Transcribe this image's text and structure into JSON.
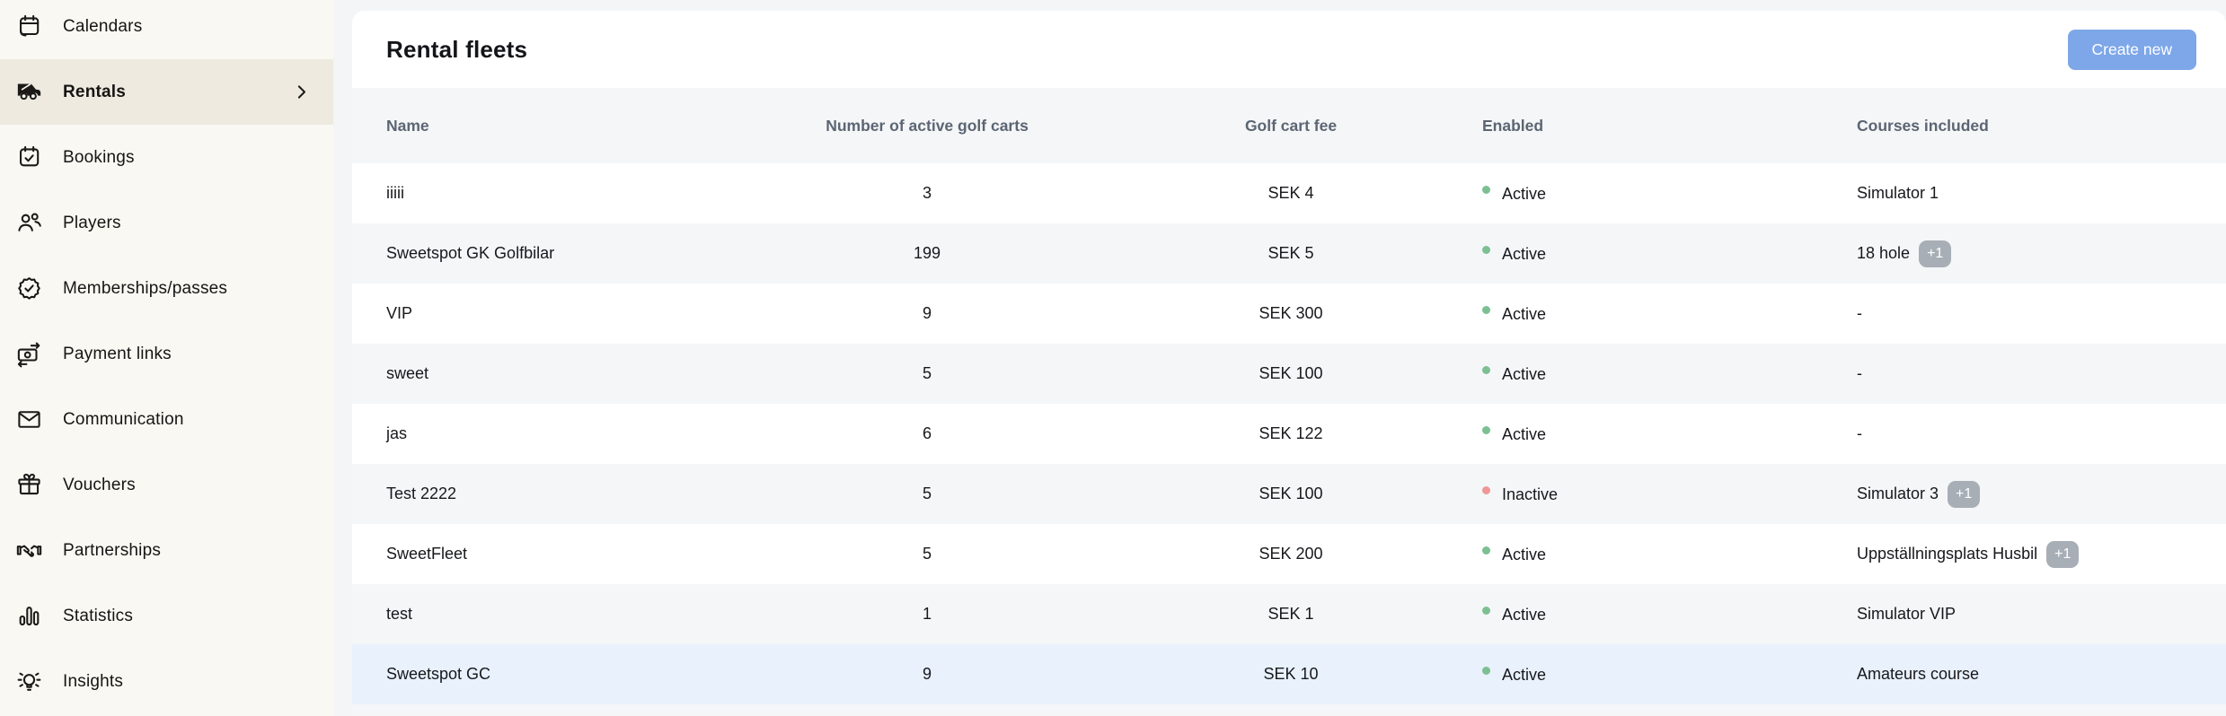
{
  "sidebar": {
    "items": [
      {
        "label": "Calendars",
        "icon": "calendars-icon",
        "selected": false
      },
      {
        "label": "Rentals",
        "icon": "golf-cart-icon",
        "selected": true
      },
      {
        "label": "Bookings",
        "icon": "booking-calendar-check-icon",
        "selected": false
      },
      {
        "label": "Players",
        "icon": "players-icon",
        "selected": false
      },
      {
        "label": "Memberships/passes",
        "icon": "membership-badge-icon",
        "selected": false
      },
      {
        "label": "Payment links",
        "icon": "payment-bill-icon",
        "selected": false
      },
      {
        "label": "Communication",
        "icon": "envelope-icon",
        "selected": false
      },
      {
        "label": "Vouchers",
        "icon": "gift-icon",
        "selected": false
      },
      {
        "label": "Partnerships",
        "icon": "handshake-icon",
        "selected": false
      },
      {
        "label": "Statistics",
        "icon": "bar-chart-icon",
        "selected": false
      },
      {
        "label": "Insights",
        "icon": "lightbulb-icon",
        "selected": false
      }
    ]
  },
  "header": {
    "title": "Rental fleets",
    "create_button": "Create new"
  },
  "table": {
    "columns": [
      "Name",
      "Number of active golf carts",
      "Golf cart fee",
      "Enabled",
      "Courses included"
    ],
    "rows": [
      {
        "name": "iiiii",
        "carts": "3",
        "fee": "SEK 4",
        "status": "Active",
        "enabled": true,
        "courses": "Simulator 1",
        "extra": null,
        "highlight": false
      },
      {
        "name": "Sweetspot GK Golfbilar",
        "carts": "199",
        "fee": "SEK 5",
        "status": "Active",
        "enabled": true,
        "courses": "18 hole",
        "extra": "+1",
        "highlight": false
      },
      {
        "name": "VIP",
        "carts": "9",
        "fee": "SEK 300",
        "status": "Active",
        "enabled": true,
        "courses": "-",
        "extra": null,
        "highlight": false
      },
      {
        "name": "sweet",
        "carts": "5",
        "fee": "SEK 100",
        "status": "Active",
        "enabled": true,
        "courses": "-",
        "extra": null,
        "highlight": false
      },
      {
        "name": "jas",
        "carts": "6",
        "fee": "SEK 122",
        "status": "Active",
        "enabled": true,
        "courses": "-",
        "extra": null,
        "highlight": false
      },
      {
        "name": "Test 2222",
        "carts": "5",
        "fee": "SEK 100",
        "status": "Inactive",
        "enabled": false,
        "courses": "Simulator 3",
        "extra": "+1",
        "highlight": false
      },
      {
        "name": "SweetFleet",
        "carts": "5",
        "fee": "SEK 200",
        "status": "Active",
        "enabled": true,
        "courses": "Uppställningsplats Husbil",
        "extra": "+1",
        "highlight": false
      },
      {
        "name": "test",
        "carts": "1",
        "fee": "SEK 1",
        "status": "Active",
        "enabled": true,
        "courses": "Simulator VIP",
        "extra": null,
        "highlight": false
      },
      {
        "name": "Sweetspot GC",
        "carts": "9",
        "fee": "SEK 10",
        "status": "Active",
        "enabled": true,
        "courses": "Amateurs course",
        "extra": null,
        "highlight": true
      }
    ]
  },
  "colors": {
    "accent": "#7da7e8",
    "status_active": "#7cbf92",
    "status_inactive": "#ee9795",
    "badge": "#a8aeb6",
    "row_highlight": "#e8f1fc",
    "sidebar_bg": "#faf8f2",
    "sidebar_selected": "#eeeae0"
  }
}
